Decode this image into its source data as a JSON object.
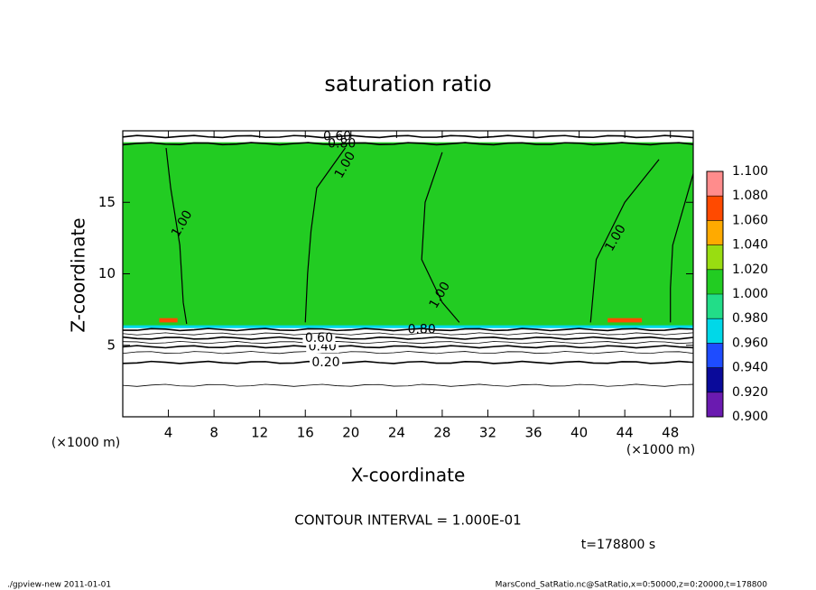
{
  "chart_data": {
    "type": "contour",
    "title": "saturation ratio",
    "x_label": "X-coordinate",
    "y_label": "Z-coordinate",
    "x_unit_labels": [
      "(×1000 m)",
      "(×1000 m)"
    ],
    "xlim": [
      0,
      50
    ],
    "ylim": [
      0,
      20
    ],
    "xticks": [
      4,
      8,
      12,
      16,
      20,
      24,
      28,
      32,
      36,
      40,
      44,
      48
    ],
    "yticks": [
      5,
      10,
      15
    ],
    "colorbar": {
      "ticks": [
        {
          "value": 0.9,
          "label": "0.900"
        },
        {
          "value": 0.92,
          "label": "0.920"
        },
        {
          "value": 0.94,
          "label": "0.940"
        },
        {
          "value": 0.96,
          "label": "0.960"
        },
        {
          "value": 0.98,
          "label": "0.980"
        },
        {
          "value": 1.0,
          "label": "1.000"
        },
        {
          "value": 1.02,
          "label": "1.020"
        },
        {
          "value": 1.04,
          "label": "1.040"
        },
        {
          "value": 1.06,
          "label": "1.060"
        },
        {
          "value": 1.08,
          "label": "1.080"
        },
        {
          "value": 1.1,
          "label": "1.100"
        }
      ],
      "colors": [
        "#6a1ab0",
        "#0a0a9a",
        "#1e4cff",
        "#00d8e8",
        "#22dd88",
        "#22cc22",
        "#99dd11",
        "#ffaa00",
        "#ff4a00",
        "#ff8c8c"
      ]
    },
    "regions": [
      {
        "x": [
          0,
          50
        ],
        "z": [
          6.2,
          6.5
        ],
        "level": 0.97
      },
      {
        "x": [
          0,
          50
        ],
        "z": [
          6.4,
          19.2
        ],
        "level": 1.0
      },
      {
        "x": [
          3.2,
          4.8
        ],
        "z": [
          6.6,
          6.9
        ],
        "level": 1.07
      },
      {
        "x": [
          42.5,
          45.5
        ],
        "z": [
          6.6,
          6.9
        ],
        "level": 1.07
      }
    ],
    "contours": [
      {
        "level": 0.1,
        "z": 2.2
      },
      {
        "level": 0.2,
        "z": 3.8,
        "label": "0.20",
        "label_x": 17.8
      },
      {
        "level": 0.3,
        "z": 4.5
      },
      {
        "level": 0.4,
        "z": 4.9,
        "label": "0.40",
        "label_x": 17.5
      },
      {
        "level": 0.5,
        "z": 5.2
      },
      {
        "level": 0.6,
        "z": 5.5,
        "label": "0.60",
        "label_x": 17.2
      },
      {
        "level": 0.7,
        "z": 5.8
      },
      {
        "level": 0.8,
        "z": 6.1,
        "label": "0.80",
        "label_x": 26.2
      },
      {
        "level": 0.8,
        "z": 19.1,
        "label": "0.80",
        "label_x": 19.2
      },
      {
        "level": 0.6,
        "z": 19.6,
        "label": "0.60",
        "label_x": 18.8
      }
    ],
    "curves": [
      {
        "level": 1.0,
        "x": [
          3.8,
          4.2,
          5,
          5.3,
          5.6
        ],
        "z": [
          18.8,
          16,
          12,
          8,
          6.5
        ],
        "label": "1.00",
        "label_x": 5.2,
        "label_z": 13.5
      },
      {
        "level": 1.0,
        "x": [
          19.5,
          17,
          16.5,
          16.2,
          16
        ],
        "z": [
          18.8,
          16,
          13,
          10,
          6.6
        ],
        "label": "1.00",
        "label_x": 19.5,
        "label_z": 17.6
      },
      {
        "level": 1.0,
        "x": [
          28,
          26.5,
          26.2,
          28,
          29.5
        ],
        "z": [
          18.5,
          15,
          11,
          8,
          6.6
        ],
        "label": "1.00",
        "label_x": 27.8,
        "label_z": 8.5
      },
      {
        "level": 1.0,
        "x": [
          47,
          44,
          41.5,
          41
        ],
        "z": [
          18,
          15,
          11,
          6.6
        ],
        "label": "1.00",
        "label_x": 43.2,
        "label_z": 12.5
      },
      {
        "level": 1.0,
        "x": [
          50,
          48.2,
          48,
          48
        ],
        "z": [
          17,
          12,
          9,
          6.6
        ]
      }
    ],
    "annotations": [
      "CONTOUR INTERVAL = 1.000E-01",
      "t=178800 s"
    ],
    "footer_left": "./gpview-new   2011-01-01",
    "footer_right": "MarsCond_SatRatio.nc@SatRatio,x=0:50000,z=0:20000,t=178800"
  }
}
